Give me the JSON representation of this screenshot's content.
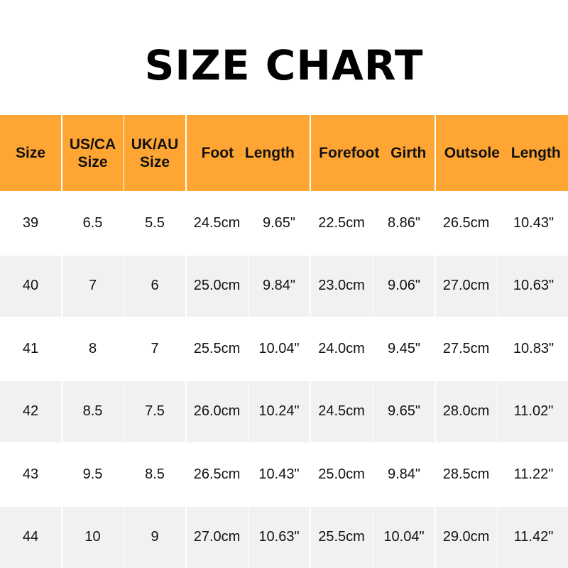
{
  "title": "SIZE CHART",
  "header_color": "#ffa533",
  "headers": [
    "Size",
    "US/CA Size",
    "UK/AU Size",
    "Foot Length",
    "Forefoot Girth",
    "Outsole Length"
  ],
  "rows": [
    [
      "39",
      "6.5",
      "5.5",
      "24.5cm",
      "9.65\"",
      "22.5cm",
      "8.86\"",
      "26.5cm",
      "10.43\""
    ],
    [
      "40",
      "7",
      "6",
      "25.0cm",
      "9.84\"",
      "23.0cm",
      "9.06\"",
      "27.0cm",
      "10.63\""
    ],
    [
      "41",
      "8",
      "7",
      "25.5cm",
      "10.04\"",
      "24.0cm",
      "9.45\"",
      "27.5cm",
      "10.83\""
    ],
    [
      "42",
      "8.5",
      "7.5",
      "26.0cm",
      "10.24\"",
      "24.5cm",
      "9.65\"",
      "28.0cm",
      "11.02\""
    ],
    [
      "43",
      "9.5",
      "8.5",
      "26.5cm",
      "10.43\"",
      "25.0cm",
      "9.84\"",
      "28.5cm",
      "11.22\""
    ],
    [
      "44",
      "10",
      "9",
      "27.0cm",
      "10.63\"",
      "25.5cm",
      "10.04\"",
      "29.0cm",
      "11.42\""
    ]
  ]
}
